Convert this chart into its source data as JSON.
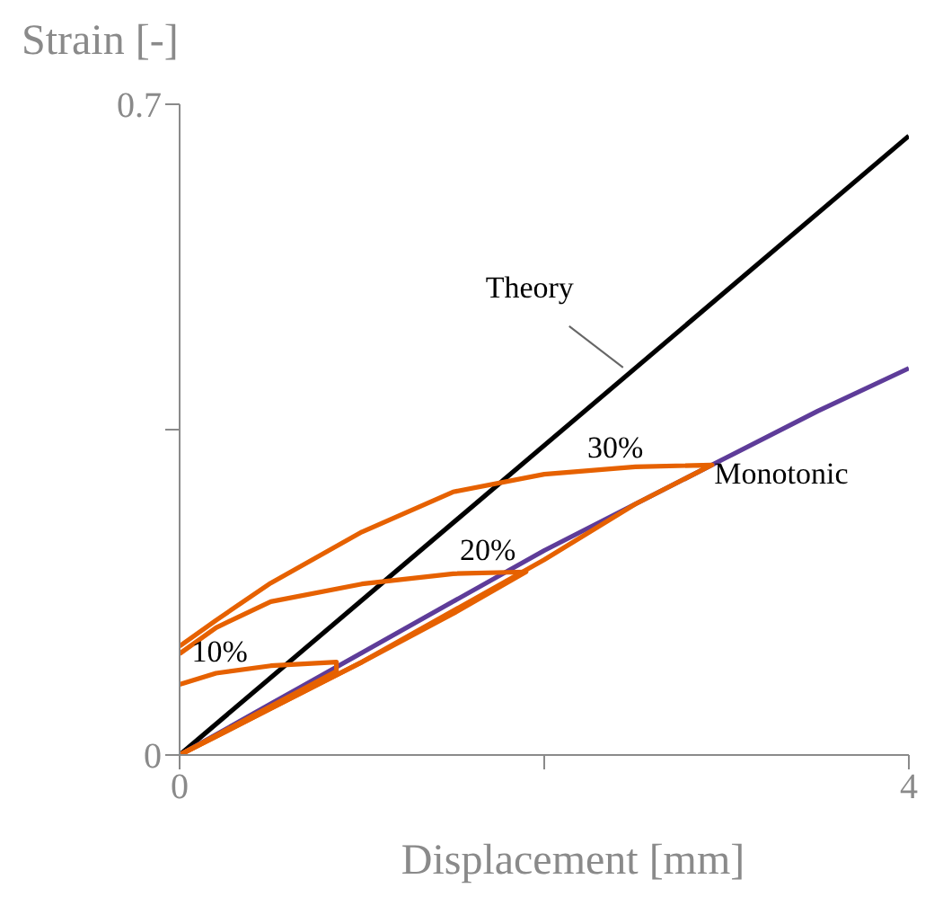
{
  "chart_data": {
    "type": "line",
    "xlabel": "Displacement [mm]",
    "ylabel": "Strain [-]",
    "xlim": [
      0,
      4
    ],
    "xticks": [
      0,
      {
        "value": 2,
        "label": null
      },
      4
    ],
    "ylim": [
      0,
      0.7
    ],
    "yticks": [
      0,
      {
        "value": 0.35,
        "label": null
      },
      0.7
    ],
    "grid": false,
    "legend": false,
    "marker": "none",
    "line_style": "solid",
    "series": [
      {
        "name": "Theory",
        "color": "#000000",
        "x": [
          0,
          4
        ],
        "values": [
          0,
          0.666
        ]
      },
      {
        "name": "Monotonic",
        "color": "#5e3c99",
        "x": [
          0,
          0.5,
          1,
          1.5,
          2,
          2.5,
          3,
          3.5,
          4
        ],
        "values": [
          0,
          0.055,
          0.11,
          0.165,
          0.22,
          0.27,
          0.32,
          0.37,
          0.416
        ]
      },
      {
        "name": "10%",
        "color": "#e66100",
        "x": [
          0,
          0.4,
          0.86,
          0.86,
          0.5,
          0.2,
          0
        ],
        "values": [
          0,
          0.042,
          0.09,
          0.1,
          0.096,
          0.088,
          0.076
        ]
      },
      {
        "name": "20%",
        "color": "#e66100",
        "x": [
          0,
          0.5,
          1,
          1.5,
          1.9,
          1.5,
          1,
          0.5,
          0.2,
          0
        ],
        "values": [
          0,
          0.05,
          0.1,
          0.152,
          0.197,
          0.195,
          0.184,
          0.165,
          0.137,
          0.109
        ]
      },
      {
        "name": "30%",
        "color": "#e66100",
        "x": [
          0,
          1,
          2,
          2.5,
          2.92,
          2.5,
          2,
          1.5,
          1,
          0.5,
          0.2,
          0
        ],
        "values": [
          0,
          0.1,
          0.21,
          0.27,
          0.312,
          0.31,
          0.302,
          0.283,
          0.24,
          0.185,
          0.145,
          0.117
        ]
      }
    ]
  }
}
